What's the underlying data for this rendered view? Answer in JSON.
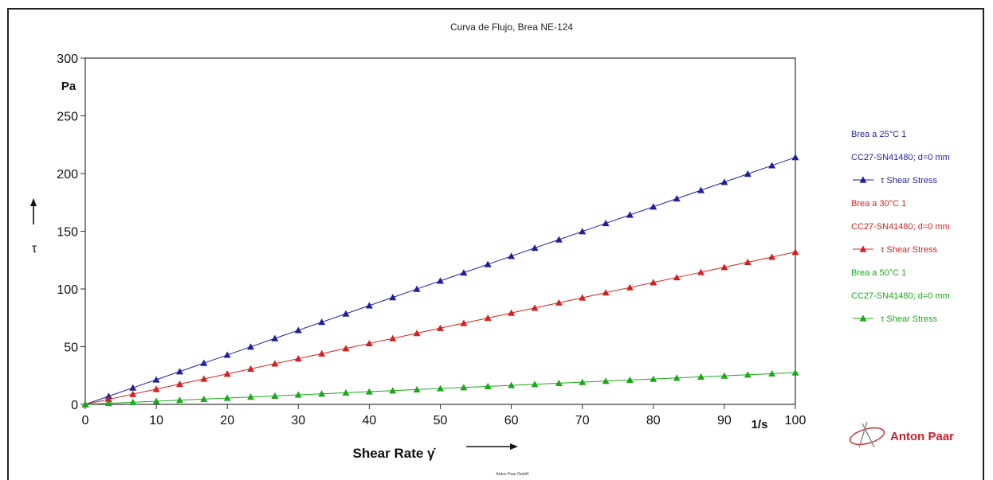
{
  "chart_data": {
    "type": "scatter",
    "title": "Curva de Flujo, Brea NE-124",
    "xlabel": "Shear Rate γ̇",
    "xunit": "1/s",
    "ylabel": "τ",
    "yunit": "Pa",
    "xlim": [
      0,
      100
    ],
    "ylim": [
      0,
      300
    ],
    "xticks": [
      "0",
      "10",
      "20",
      "30",
      "40",
      "50",
      "60",
      "70",
      "80",
      "90",
      "100"
    ],
    "yticks": [
      "0",
      "50",
      "100",
      "150",
      "200",
      "250",
      "300"
    ],
    "x": [
      0,
      3.3,
      6.7,
      10,
      13.3,
      16.7,
      20,
      23.3,
      26.7,
      30,
      33.3,
      36.7,
      40,
      43.3,
      46.7,
      50,
      53.3,
      56.7,
      60,
      63.3,
      66.7,
      70,
      73.3,
      76.7,
      80,
      83.3,
      86.7,
      90,
      93.3,
      96.7,
      100
    ],
    "series": [
      {
        "legend_title": "Brea a 25°C 1",
        "legend_sub": "CC27-SN41480; d=0 mm",
        "legend_marker_label": "τ   Shear Stress",
        "color": "#1f1f9e",
        "slope": 2.14
      },
      {
        "legend_title": "Brea a 30°C 1",
        "legend_sub": "CC27-SN41480; d=0 mm",
        "legend_marker_label": "τ   Shear Stress",
        "color": "#d42020",
        "slope": 1.32
      },
      {
        "legend_title": "Brea a 50°C 1",
        "legend_sub": "CC27-SN41480; d=0 mm",
        "legend_marker_label": "τ   Shear Stress",
        "color": "#1aa81a",
        "slope": 0.275
      }
    ],
    "grid": false,
    "legend_position": "right"
  },
  "brand": "Anton Paar",
  "footer": "Anton Paar GmbH"
}
